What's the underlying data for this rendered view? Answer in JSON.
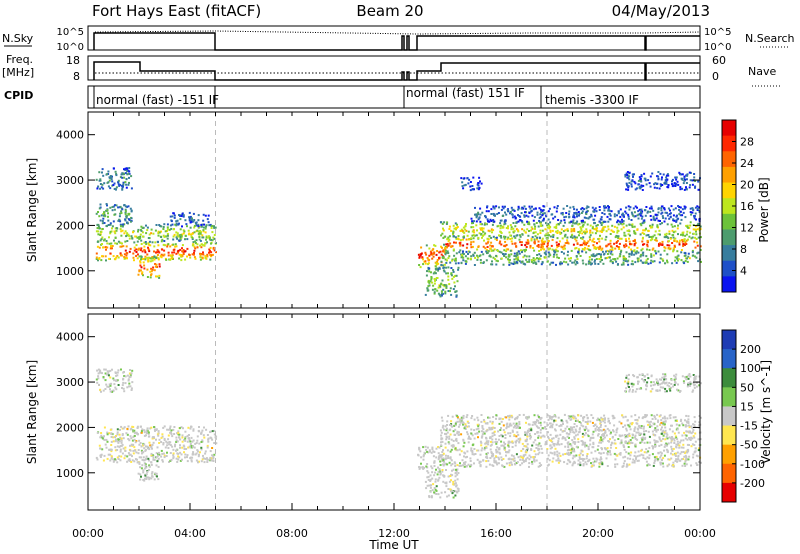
{
  "header": {
    "radar": "Fort Hays East (fitACF)",
    "beam": "Beam 20",
    "date": "04/May/2013"
  },
  "params": {
    "nsky_label": "N.Sky",
    "nsearch_label": "N.Search",
    "freq_label": "Freq.",
    "freq_unit": "[MHz]",
    "nave_label": "Nave",
    "cpid_label": "CPID",
    "nsky_ticks": [
      "10^5",
      "10^0"
    ],
    "nsearch_ticks": [
      "10^5",
      "10^0"
    ],
    "freq_ticks": [
      "18",
      "8"
    ],
    "nave_ticks": [
      "60",
      "0"
    ],
    "cpid_segments": [
      {
        "label": "normal (fast) -151 IF",
        "start": 0.0,
        "end": 5.0
      },
      {
        "label": "normal (fast) 151 IF",
        "start": 12.9,
        "end": 18.0
      },
      {
        "label": "themis -3300 IF",
        "start": 18.0,
        "end": 24.0
      }
    ]
  },
  "chart_data": [
    {
      "type": "heatmap",
      "name": "power",
      "ylabel": "Slant Range [km]",
      "ylim": [
        180,
        4500
      ],
      "xlim": [
        0,
        24
      ],
      "yticks": [
        1000,
        2000,
        3000,
        4000
      ],
      "colorbar": {
        "label": "Power [dB]",
        "ticks": [
          "4",
          "8",
          "12",
          "16",
          "20",
          "24",
          "28"
        ],
        "colors": [
          "#0a14f0",
          "#1e50c8",
          "#377d9e",
          "#4d9c6e",
          "#6cc23a",
          "#bde61e",
          "#ffd400",
          "#ffa000",
          "#ff6400",
          "#ff2800",
          "#e60000"
        ]
      },
      "regions": [
        {
          "x0": 0.3,
          "x1": 5.0,
          "y0": 1250,
          "y1": 1650,
          "level": 0.92
        },
        {
          "x0": 0.3,
          "x1": 5.0,
          "y0": 1650,
          "y1": 2050,
          "level": 0.55
        },
        {
          "x0": 0.3,
          "x1": 1.7,
          "y0": 2050,
          "y1": 2500,
          "level": 0.35
        },
        {
          "x0": 0.3,
          "x1": 1.7,
          "y0": 2800,
          "y1": 3300,
          "level": 0.3
        },
        {
          "x0": 1.9,
          "x1": 2.8,
          "y0": 850,
          "y1": 1350,
          "level": 0.85
        },
        {
          "x0": 3.2,
          "x1": 4.7,
          "y0": 2000,
          "y1": 2300,
          "level": 0.2
        },
        {
          "x0": 12.9,
          "x1": 14.0,
          "y0": 1100,
          "y1": 1600,
          "level": 0.9
        },
        {
          "x0": 13.2,
          "x1": 14.5,
          "y0": 450,
          "y1": 1100,
          "level": 0.5
        },
        {
          "x0": 13.8,
          "x1": 24.0,
          "y0": 1450,
          "y1": 1750,
          "level": 0.9
        },
        {
          "x0": 13.8,
          "x1": 24.0,
          "y0": 1750,
          "y1": 2100,
          "level": 0.6
        },
        {
          "x0": 13.8,
          "x1": 24.0,
          "y0": 1150,
          "y1": 1450,
          "level": 0.45
        },
        {
          "x0": 15.0,
          "x1": 24.0,
          "y0": 2100,
          "y1": 2450,
          "level": 0.2
        },
        {
          "x0": 14.6,
          "x1": 15.4,
          "y0": 2800,
          "y1": 3100,
          "level": 0.15
        },
        {
          "x0": 21.0,
          "x1": 24.0,
          "y0": 2800,
          "y1": 3200,
          "level": 0.18
        }
      ]
    },
    {
      "type": "heatmap",
      "name": "velocity",
      "ylabel": "Slant Range [km]",
      "xlabel": "Time UT",
      "ylim": [
        180,
        4500
      ],
      "xlim": [
        0,
        24
      ],
      "yticks": [
        1000,
        2000,
        3000,
        4000
      ],
      "xticks": [
        "00:00",
        "04:00",
        "08:00",
        "12:00",
        "16:00",
        "20:00",
        "00:00"
      ],
      "colorbar": {
        "label": "Velocity [m s^-1]",
        "ticks": [
          "200",
          "100",
          "50",
          "15",
          "-15",
          "-50",
          "-100",
          "-200"
        ],
        "colors": [
          "#1e3cb4",
          "#2864c8",
          "#3c8c3c",
          "#78c850",
          "#c8c8c8",
          "#ffe650",
          "#ffa000",
          "#ff6400",
          "#e60000"
        ]
      },
      "regions": [
        {
          "x0": 0.3,
          "x1": 5.0,
          "y0": 1250,
          "y1": 2050,
          "level": 0.5
        },
        {
          "x0": 1.9,
          "x1": 2.8,
          "y0": 850,
          "y1": 1350,
          "level": 0.65
        },
        {
          "x0": 0.3,
          "x1": 1.7,
          "y0": 2800,
          "y1": 3300,
          "level": 0.55
        },
        {
          "x0": 12.9,
          "x1": 14.0,
          "y0": 1100,
          "y1": 1600,
          "level": 0.5
        },
        {
          "x0": 13.2,
          "x1": 14.5,
          "y0": 450,
          "y1": 1100,
          "level": 0.55
        },
        {
          "x0": 13.8,
          "x1": 24.0,
          "y0": 1150,
          "y1": 2300,
          "level": 0.5
        },
        {
          "x0": 21.0,
          "x1": 24.0,
          "y0": 2800,
          "y1": 3200,
          "level": 0.6
        }
      ]
    }
  ]
}
